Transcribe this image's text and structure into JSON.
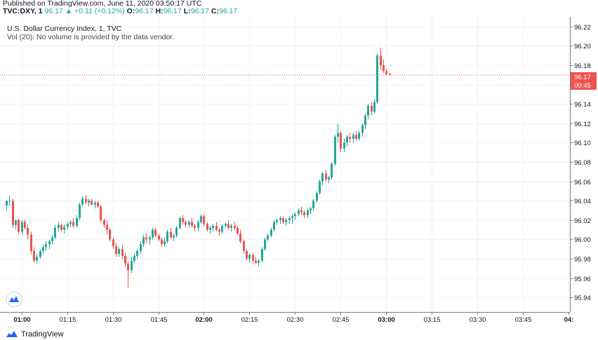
{
  "header": {
    "published": "Published on TradingView.com, June 11, 2020 03:50:17 UTC",
    "symbol": "TVC:DXY, 1",
    "last": "96.17",
    "change": "+0.11 (+0.12%)",
    "o_label": "O:",
    "o": "96.17",
    "h_label": "H:",
    "h": "96.17",
    "l_label": "L:",
    "l": "96.17",
    "c_label": "C:",
    "c": "96.17"
  },
  "legend": {
    "title": "U.S. Dollar Currency Index, 1, TVC",
    "vol": "Vol (20): No volume is provided by the data vendor."
  },
  "price_tag": {
    "price": "96.17",
    "countdown": "00:45"
  },
  "footer": {
    "brand": "TradingView"
  },
  "colors": {
    "up": "#26a69a",
    "down": "#ef5350",
    "grid": "#f0f3fa",
    "axis": "#787b86"
  },
  "chart_data": {
    "type": "candlestick",
    "title": "U.S. Dollar Currency Index, 1, TVC",
    "ylim": [
      95.925,
      96.23
    ],
    "y_ticks": [
      "96.22",
      "96.20",
      "96.18",
      "96.16",
      "96.14",
      "96.12",
      "96.10",
      "96.08",
      "96.06",
      "96.04",
      "96.02",
      "96.00",
      "95.98",
      "95.96",
      "95.94"
    ],
    "x_ticks": [
      {
        "label": "01:00",
        "bold": true,
        "index": 5
      },
      {
        "label": "01:15",
        "bold": false,
        "index": 20
      },
      {
        "label": "01:30",
        "bold": false,
        "index": 35
      },
      {
        "label": "01:45",
        "bold": false,
        "index": 50
      },
      {
        "label": "02:00",
        "bold": true,
        "index": 65
      },
      {
        "label": "02:15",
        "bold": false,
        "index": 80
      },
      {
        "label": "02:30",
        "bold": false,
        "index": 95
      },
      {
        "label": "02:45",
        "bold": false,
        "index": 110
      },
      {
        "label": "03:00",
        "bold": true,
        "index": 125
      },
      {
        "label": "03:15",
        "bold": false,
        "index": 140
      },
      {
        "label": "03:30",
        "bold": false,
        "index": 155
      },
      {
        "label": "03:45",
        "bold": false,
        "index": 170
      },
      {
        "label": "04:",
        "bold": true,
        "index": 185
      }
    ],
    "last_price": 96.17,
    "ohlc": [
      [
        96.035,
        96.04,
        96.03,
        96.04
      ],
      [
        96.04,
        96.045,
        96.035,
        96.04
      ],
      [
        96.04,
        96.042,
        96.012,
        96.015
      ],
      [
        96.015,
        96.02,
        96.01,
        96.02
      ],
      [
        96.02,
        96.022,
        96.005,
        96.008
      ],
      [
        96.008,
        96.02,
        96.005,
        96.018
      ],
      [
        96.018,
        96.02,
        96.01,
        96.012
      ],
      [
        96.012,
        96.015,
        96.0,
        96.005
      ],
      [
        96.005,
        96.008,
        95.985,
        95.988
      ],
      [
        95.988,
        95.992,
        95.976,
        95.978
      ],
      [
        95.978,
        95.985,
        95.975,
        95.982
      ],
      [
        95.982,
        95.99,
        95.98,
        95.988
      ],
      [
        95.988,
        95.995,
        95.985,
        95.992
      ],
      [
        95.992,
        95.998,
        95.988,
        95.995
      ],
      [
        95.995,
        96.0,
        95.99,
        95.998
      ],
      [
        95.998,
        96.005,
        95.995,
        96.002
      ],
      [
        96.002,
        96.015,
        96.0,
        96.012
      ],
      [
        96.012,
        96.018,
        96.008,
        96.015
      ],
      [
        96.015,
        96.016,
        96.008,
        96.01
      ],
      [
        96.01,
        96.015,
        96.006,
        96.013
      ],
      [
        96.013,
        96.018,
        96.01,
        96.016
      ],
      [
        96.016,
        96.02,
        96.012,
        96.018
      ],
      [
        96.018,
        96.022,
        96.012,
        96.014
      ],
      [
        96.014,
        96.025,
        96.012,
        96.022
      ],
      [
        96.022,
        96.038,
        96.02,
        96.036
      ],
      [
        96.036,
        96.045,
        96.034,
        96.042
      ],
      [
        96.042,
        96.046,
        96.036,
        96.038
      ],
      [
        96.038,
        96.042,
        96.034,
        96.04
      ],
      [
        96.04,
        96.042,
        96.035,
        96.036
      ],
      [
        96.036,
        96.04,
        96.032,
        96.038
      ],
      [
        96.038,
        96.04,
        96.032,
        96.034
      ],
      [
        96.034,
        96.036,
        96.018,
        96.02
      ],
      [
        96.02,
        96.022,
        96.012,
        96.015
      ],
      [
        96.015,
        96.02,
        96.005,
        96.01
      ],
      [
        96.01,
        96.012,
        95.998,
        96.0
      ],
      [
        96.0,
        96.002,
        95.99,
        95.993
      ],
      [
        95.993,
        95.996,
        95.982,
        95.985
      ],
      [
        95.985,
        95.992,
        95.982,
        95.99
      ],
      [
        95.99,
        95.994,
        95.98,
        95.983
      ],
      [
        95.983,
        95.986,
        95.972,
        95.975
      ],
      [
        95.975,
        95.978,
        95.95,
        95.968
      ],
      [
        95.968,
        95.982,
        95.965,
        95.978
      ],
      [
        95.978,
        95.985,
        95.975,
        95.983
      ],
      [
        95.983,
        95.99,
        95.98,
        95.988
      ],
      [
        95.988,
        95.998,
        95.985,
        95.995
      ],
      [
        95.995,
        96.005,
        95.992,
        96.002
      ],
      [
        96.002,
        96.006,
        95.996,
        96.0
      ],
      [
        96.0,
        96.004,
        95.995,
        96.002
      ],
      [
        96.002,
        96.012,
        96.0,
        96.01
      ],
      [
        96.01,
        96.012,
        96.002,
        96.004
      ],
      [
        96.004,
        96.006,
        95.998,
        96.0
      ],
      [
        96.0,
        96.002,
        95.992,
        95.995
      ],
      [
        95.995,
        96.002,
        95.992,
        95.998
      ],
      [
        95.998,
        96.01,
        95.996,
        96.008
      ],
      [
        96.008,
        96.012,
        96.0,
        96.002
      ],
      [
        96.002,
        96.006,
        95.998,
        96.004
      ],
      [
        96.004,
        96.014,
        96.002,
        96.012
      ],
      [
        96.012,
        96.024,
        96.01,
        96.022
      ],
      [
        96.022,
        96.025,
        96.015,
        96.018
      ],
      [
        96.018,
        96.02,
        96.012,
        96.015
      ],
      [
        96.015,
        96.02,
        96.012,
        96.018
      ],
      [
        96.018,
        96.022,
        96.012,
        96.014
      ],
      [
        96.014,
        96.016,
        96.008,
        96.012
      ],
      [
        96.012,
        96.02,
        96.008,
        96.018
      ],
      [
        96.018,
        96.026,
        96.016,
        96.024
      ],
      [
        96.024,
        96.026,
        96.014,
        96.016
      ],
      [
        96.016,
        96.018,
        96.008,
        96.01
      ],
      [
        96.01,
        96.014,
        96.006,
        96.012
      ],
      [
        96.012,
        96.016,
        96.008,
        96.014
      ],
      [
        96.014,
        96.018,
        96.008,
        96.01
      ],
      [
        96.01,
        96.012,
        96.004,
        96.008
      ],
      [
        96.008,
        96.016,
        96.006,
        96.014
      ],
      [
        96.014,
        96.018,
        96.012,
        96.016
      ],
      [
        96.016,
        96.02,
        96.01,
        96.012
      ],
      [
        96.012,
        96.016,
        96.008,
        96.014
      ],
      [
        96.014,
        96.018,
        96.01,
        96.012
      ],
      [
        96.012,
        96.014,
        96.004,
        96.006
      ],
      [
        96.006,
        96.01,
        95.996,
        95.998
      ],
      [
        95.998,
        96.0,
        95.985,
        95.988
      ],
      [
        95.988,
        95.99,
        95.978,
        95.98
      ],
      [
        95.98,
        95.986,
        95.976,
        95.984
      ],
      [
        95.984,
        95.986,
        95.975,
        95.978
      ],
      [
        95.978,
        95.982,
        95.974,
        95.976
      ],
      [
        95.976,
        95.98,
        95.972,
        95.978
      ],
      [
        95.978,
        95.992,
        95.976,
        95.99
      ],
      [
        95.99,
        96.002,
        95.988,
        96.0
      ],
      [
        96.0,
        96.006,
        95.998,
        96.004
      ],
      [
        96.004,
        96.012,
        96.002,
        96.01
      ],
      [
        96.01,
        96.02,
        96.008,
        96.018
      ],
      [
        96.018,
        96.022,
        96.015,
        96.02
      ],
      [
        96.02,
        96.024,
        96.016,
        96.022
      ],
      [
        96.022,
        96.024,
        96.016,
        96.018
      ],
      [
        96.018,
        96.022,
        96.014,
        96.02
      ],
      [
        96.02,
        96.024,
        96.016,
        96.022
      ],
      [
        96.022,
        96.026,
        96.016,
        96.024
      ],
      [
        96.024,
        96.028,
        96.02,
        96.026
      ],
      [
        96.026,
        96.032,
        96.024,
        96.03
      ],
      [
        96.03,
        96.034,
        96.025,
        96.028
      ],
      [
        96.028,
        96.03,
        96.022,
        96.025
      ],
      [
        96.025,
        96.032,
        96.022,
        96.03
      ],
      [
        96.03,
        96.034,
        96.026,
        96.032
      ],
      [
        96.032,
        96.042,
        96.03,
        96.04
      ],
      [
        96.04,
        96.05,
        96.038,
        96.048
      ],
      [
        96.048,
        96.062,
        96.046,
        96.06
      ],
      [
        96.06,
        96.07,
        96.056,
        96.068
      ],
      [
        96.068,
        96.072,
        96.06,
        96.062
      ],
      [
        96.062,
        96.066,
        96.058,
        96.064
      ],
      [
        96.064,
        96.08,
        96.062,
        96.078
      ],
      [
        96.078,
        96.108,
        96.076,
        96.106
      ],
      [
        96.106,
        96.12,
        96.1,
        96.11
      ],
      [
        96.11,
        96.112,
        96.09,
        96.094
      ],
      [
        96.094,
        96.104,
        96.09,
        96.1
      ],
      [
        96.1,
        96.108,
        96.096,
        96.106
      ],
      [
        96.106,
        96.11,
        96.1,
        96.104
      ],
      [
        96.104,
        96.11,
        96.1,
        96.108
      ],
      [
        96.108,
        96.112,
        96.102,
        96.104
      ],
      [
        96.104,
        96.112,
        96.102,
        96.11
      ],
      [
        96.11,
        96.12,
        96.106,
        96.118
      ],
      [
        96.118,
        96.13,
        96.114,
        96.128
      ],
      [
        96.128,
        96.14,
        96.124,
        96.138
      ],
      [
        96.138,
        96.142,
        96.128,
        96.132
      ],
      [
        96.132,
        96.145,
        96.13,
        96.142
      ],
      [
        96.142,
        96.192,
        96.14,
        96.19
      ],
      [
        96.19,
        96.198,
        96.175,
        96.18
      ],
      [
        96.18,
        96.186,
        96.172,
        96.174
      ],
      [
        96.174,
        96.176,
        96.17,
        96.171
      ],
      [
        96.171,
        96.172,
        96.169,
        96.17
      ]
    ]
  }
}
